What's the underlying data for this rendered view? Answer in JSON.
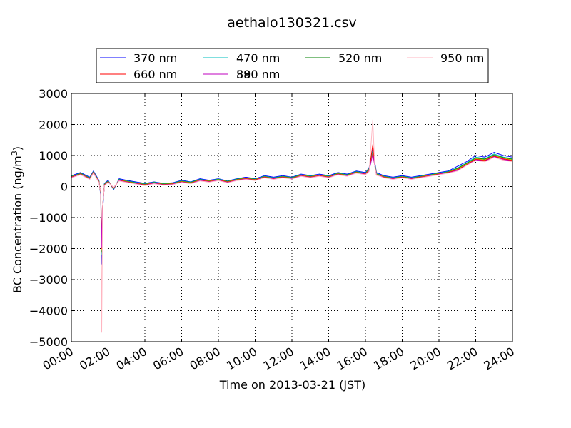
{
  "chart_data": {
    "type": "line",
    "title": "aethalo130321.csv",
    "xlabel": "Time on 2013-03-21 (JST)",
    "ylabel": "BC Concentration (ng/m",
    "ylabel_sup": "3",
    "ylabel_close": ")",
    "xlim": [
      0,
      24
    ],
    "ylim": [
      -5000,
      3000
    ],
    "grid": true,
    "legend_position": "top",
    "x_tick_values": [
      0,
      2,
      4,
      6,
      8,
      10,
      12,
      14,
      16,
      18,
      20,
      22,
      24
    ],
    "x_tick_labels": [
      "00:00",
      "02:00",
      "04:00",
      "06:00",
      "08:00",
      "10:00",
      "12:00",
      "14:00",
      "16:00",
      "18:00",
      "20:00",
      "22:00",
      "24:00"
    ],
    "y_tick_values": [
      -5000,
      -4000,
      -3000,
      -2000,
      -1000,
      0,
      1000,
      2000,
      3000
    ],
    "y_tick_labels": [
      "−5000",
      "−4000",
      "−3000",
      "−2000",
      "−1000",
      "0",
      "1000",
      "2000",
      "3000"
    ],
    "x": [
      0,
      0.5,
      1,
      1.2,
      1.5,
      1.6,
      1.65,
      1.7,
      1.8,
      2,
      2.3,
      2.6,
      3,
      3.5,
      4,
      4.5,
      5,
      5.5,
      6,
      6.5,
      7,
      7.5,
      8,
      8.5,
      9,
      9.5,
      10,
      10.5,
      11,
      11.5,
      12,
      12.5,
      13,
      13.5,
      14,
      14.5,
      15,
      15.5,
      16,
      16.2,
      16.4,
      16.5,
      16.6,
      16.8,
      17,
      17.5,
      18,
      18.5,
      19,
      19.5,
      20,
      20.5,
      21,
      21.5,
      22,
      22.5,
      23,
      23.5,
      24
    ],
    "series": [
      {
        "name": "370 nm",
        "color": "#0000ff",
        "values": [
          350,
          450,
          300,
          500,
          200,
          -300,
          -2500,
          -800,
          100,
          200,
          -100,
          250,
          200,
          150,
          100,
          150,
          100,
          120,
          200,
          150,
          250,
          200,
          250,
          180,
          250,
          300,
          250,
          350,
          300,
          350,
          300,
          400,
          350,
          400,
          350,
          450,
          400,
          500,
          450,
          600,
          1200,
          800,
          450,
          400,
          350,
          300,
          350,
          300,
          350,
          400,
          450,
          500,
          650,
          800,
          1000,
          950,
          1100,
          1000,
          950
        ]
      },
      {
        "name": "470 nm",
        "color": "#00bfbf",
        "values": [
          330,
          430,
          280,
          480,
          180,
          -250,
          -2200,
          -700,
          80,
          180,
          -80,
          230,
          180,
          130,
          80,
          140,
          90,
          110,
          180,
          140,
          230,
          190,
          240,
          170,
          240,
          280,
          240,
          330,
          280,
          330,
          290,
          380,
          330,
          380,
          330,
          430,
          380,
          480,
          430,
          580,
          1150,
          760,
          420,
          380,
          330,
          280,
          330,
          280,
          330,
          380,
          430,
          480,
          600,
          760,
          950,
          900,
          1050,
          950,
          900
        ]
      },
      {
        "name": "520 nm",
        "color": "#008000",
        "values": [
          320,
          420,
          270,
          470,
          170,
          -230,
          -2100,
          -680,
          70,
          170,
          -70,
          220,
          170,
          120,
          70,
          130,
          80,
          100,
          170,
          130,
          220,
          180,
          230,
          160,
          230,
          270,
          230,
          320,
          270,
          320,
          280,
          370,
          320,
          370,
          320,
          420,
          370,
          470,
          420,
          560,
          1100,
          740,
          400,
          370,
          320,
          270,
          320,
          270,
          320,
          370,
          420,
          470,
          580,
          740,
          920,
          880,
          1020,
          930,
          880
        ]
      },
      {
        "name": "590 nm",
        "color": "#bfbf00",
        "values": [
          310,
          410,
          260,
          460,
          160,
          -220,
          -2050,
          -660,
          60,
          160,
          -60,
          210,
          160,
          110,
          60,
          120,
          70,
          90,
          160,
          120,
          210,
          170,
          220,
          150,
          220,
          260,
          220,
          310,
          260,
          310,
          270,
          360,
          310,
          360,
          310,
          410,
          360,
          460,
          410,
          540,
          1080,
          720,
          390,
          360,
          310,
          260,
          310,
          260,
          310,
          360,
          410,
          460,
          560,
          720,
          900,
          860,
          1000,
          910,
          860
        ]
      },
      {
        "name": "660 nm",
        "color": "#ff0000",
        "values": [
          300,
          400,
          250,
          450,
          150,
          -200,
          -2000,
          -650,
          50,
          150,
          -50,
          200,
          150,
          100,
          50,
          110,
          60,
          80,
          150,
          110,
          200,
          160,
          210,
          140,
          210,
          250,
          210,
          300,
          250,
          300,
          260,
          350,
          300,
          350,
          300,
          400,
          350,
          450,
          400,
          520,
          1350,
          700,
          380,
          350,
          300,
          250,
          300,
          250,
          300,
          350,
          400,
          450,
          540,
          700,
          880,
          840,
          980,
          890,
          840
        ]
      },
      {
        "name": "880 nm",
        "color": "#bf00bf",
        "values": [
          290,
          390,
          240,
          440,
          140,
          -190,
          -1950,
          -640,
          40,
          140,
          -40,
          190,
          140,
          90,
          40,
          100,
          50,
          70,
          140,
          100,
          190,
          150,
          200,
          130,
          200,
          240,
          200,
          290,
          240,
          290,
          250,
          340,
          290,
          340,
          290,
          390,
          340,
          440,
          390,
          500,
          1050,
          690,
          370,
          340,
          290,
          240,
          290,
          240,
          290,
          340,
          390,
          440,
          520,
          690,
          860,
          820,
          960,
          870,
          820
        ]
      },
      {
        "name": "950 nm",
        "color": "#ffb6c1",
        "values": [
          280,
          380,
          230,
          430,
          130,
          -180,
          -4700,
          -630,
          30,
          130,
          -30,
          180,
          130,
          80,
          30,
          90,
          40,
          60,
          130,
          90,
          180,
          140,
          190,
          120,
          190,
          230,
          190,
          280,
          230,
          280,
          240,
          330,
          280,
          330,
          280,
          380,
          330,
          430,
          380,
          480,
          2150,
          680,
          360,
          330,
          280,
          230,
          280,
          230,
          280,
          330,
          380,
          430,
          500,
          680,
          840,
          800,
          940,
          850,
          800
        ]
      }
    ]
  }
}
